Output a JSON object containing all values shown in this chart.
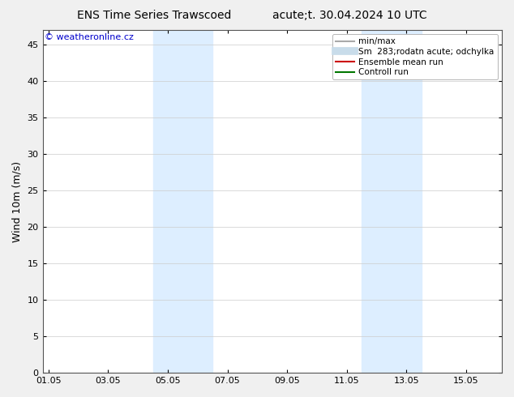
{
  "title_left": "ENS Time Series Trawscoed",
  "title_right": "acute;t. 30.04.2024 10 UTC",
  "ylabel": "Wind 10m (m/s)",
  "watermark": "© weatheronline.cz",
  "xtick_labels": [
    "01.05",
    "03.05",
    "05.05",
    "07.05",
    "09.05",
    "11.05",
    "13.05",
    "15.05"
  ],
  "xtick_positions": [
    0,
    2,
    4,
    6,
    8,
    10,
    12,
    14
  ],
  "xlim": [
    -0.2,
    15.2
  ],
  "ylim": [
    0,
    47
  ],
  "ytick_positions": [
    0,
    5,
    10,
    15,
    20,
    25,
    30,
    35,
    40,
    45
  ],
  "ytick_labels": [
    "0",
    "5",
    "10",
    "15",
    "20",
    "25",
    "30",
    "35",
    "40",
    "45"
  ],
  "shade_regions": [
    {
      "xstart": 3.5,
      "xend": 5.5
    },
    {
      "xstart": 10.5,
      "xend": 12.5
    }
  ],
  "shade_color": "#ddeeff",
  "background_color": "#f0f0f0",
  "plot_bg_color": "#ffffff",
  "legend_items": [
    {
      "label": "min/max",
      "color": "#aaaaaa",
      "linestyle": "-",
      "linewidth": 1.5
    },
    {
      "label": "Sm  283;rodatn acute; odchylka",
      "color": "#c8dcea",
      "linestyle": "-",
      "linewidth": 7
    },
    {
      "label": "Ensemble mean run",
      "color": "#cc0000",
      "linestyle": "-",
      "linewidth": 1.5
    },
    {
      "label": "Controll run",
      "color": "#007700",
      "linestyle": "-",
      "linewidth": 1.5
    }
  ],
  "watermark_color": "#0000cc",
  "title_fontsize": 10,
  "ylabel_fontsize": 9,
  "tick_fontsize": 8,
  "legend_fontsize": 7.5
}
